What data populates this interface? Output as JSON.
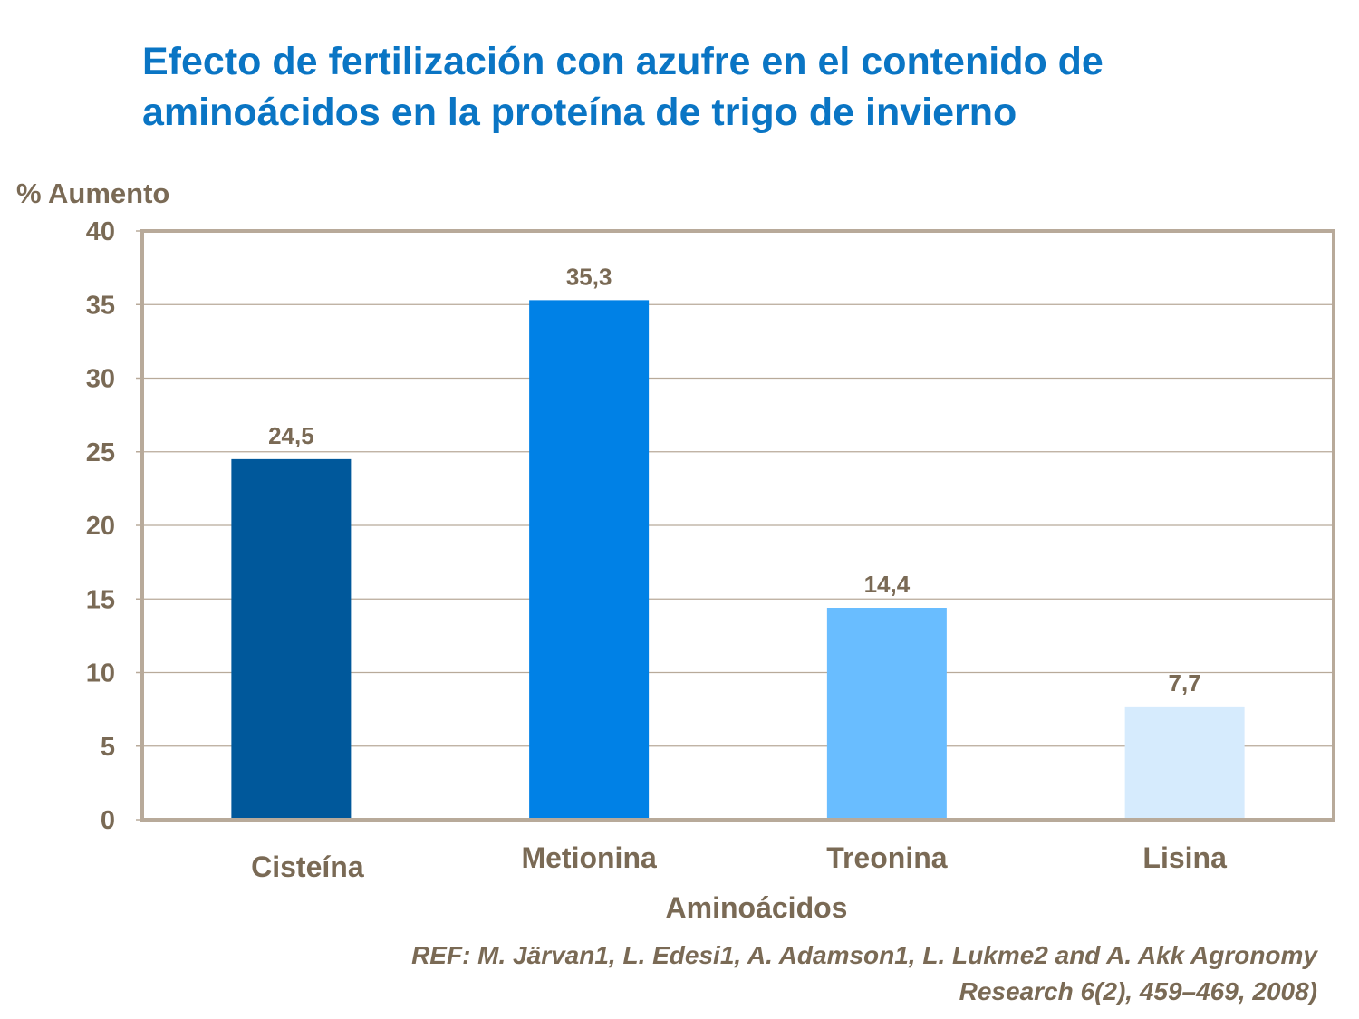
{
  "chart_data": {
    "type": "bar",
    "title": "Efecto de fertilización con azufre en el contenido de aminoácidos en la proteína de trigo de invierno",
    "ylabel": "% Aumento",
    "xlabel": "Aminoácidos",
    "categories": [
      "Cisteína",
      "Metionina",
      "Treonina",
      "Lisina"
    ],
    "values": [
      24.5,
      35.3,
      14.4,
      7.7
    ],
    "data_labels": [
      "24,5",
      "35,3",
      "14,4",
      "7,7"
    ],
    "colors": [
      "#00589b",
      "#0081e6",
      "#69bdff",
      "#d6ebfd"
    ],
    "ylim": [
      0,
      40
    ],
    "yticks": [
      0,
      5,
      10,
      15,
      20,
      25,
      30,
      35,
      40
    ],
    "grid": true,
    "legend": "none"
  },
  "reference": {
    "line1": "REF: M. Järvan1, L. Edesi1, A. Adamson1, L. Lukme2 and A. Akk Agronomy",
    "line2": "Research 6(2), 459–469, 2008)"
  }
}
